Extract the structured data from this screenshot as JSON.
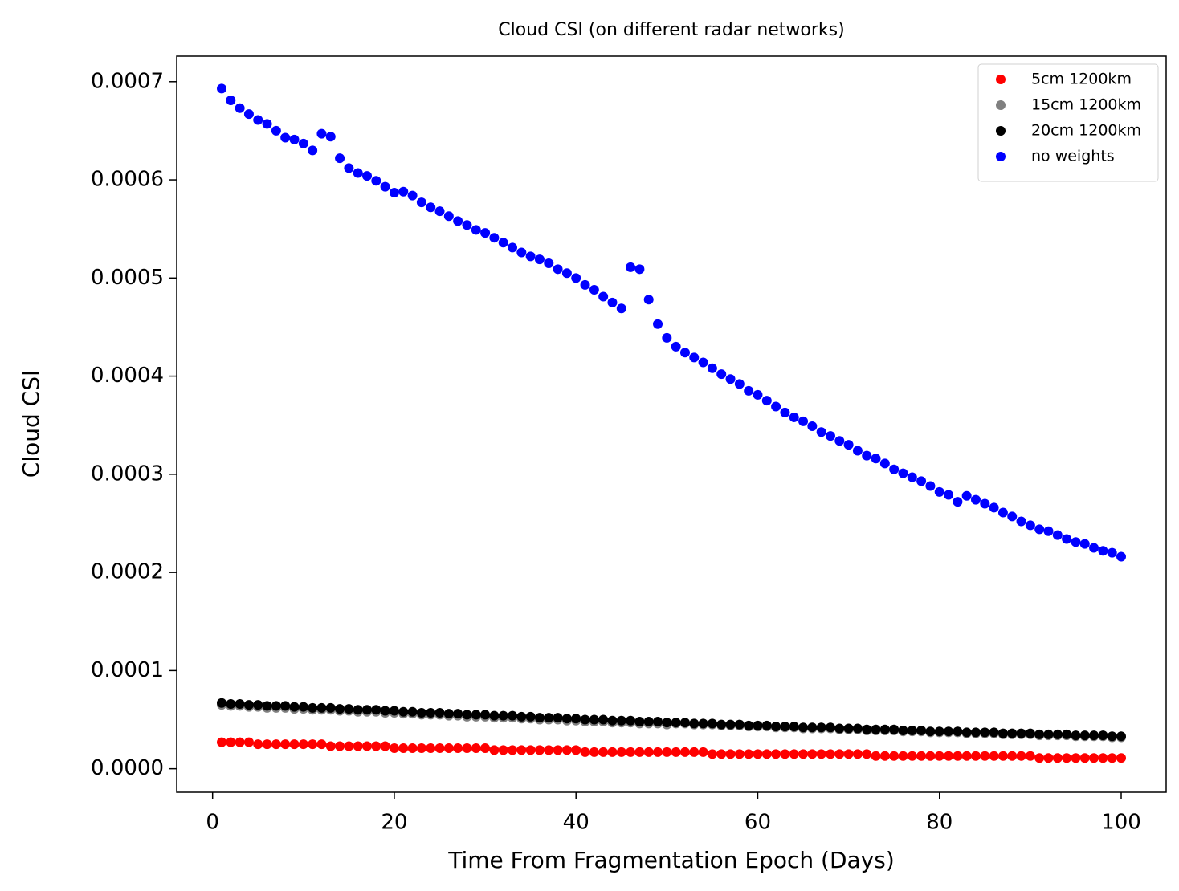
{
  "chart_data": {
    "type": "scatter",
    "title": "Cloud CSI (on different radar networks)",
    "x_label": "Time From Fragmentation Epoch (Days)",
    "y_label": "Cloud CSI",
    "x": [
      1,
      2,
      3,
      4,
      5,
      6,
      7,
      8,
      9,
      10,
      11,
      12,
      13,
      14,
      15,
      16,
      17,
      18,
      19,
      20,
      21,
      22,
      23,
      24,
      25,
      26,
      27,
      28,
      29,
      30,
      31,
      32,
      33,
      34,
      35,
      36,
      37,
      38,
      39,
      40,
      41,
      42,
      43,
      44,
      45,
      46,
      47,
      48,
      49,
      50,
      51,
      52,
      53,
      54,
      55,
      56,
      57,
      58,
      59,
      60,
      61,
      62,
      63,
      64,
      65,
      66,
      67,
      68,
      69,
      70,
      71,
      72,
      73,
      74,
      75,
      76,
      77,
      78,
      79,
      80,
      81,
      82,
      83,
      84,
      85,
      86,
      87,
      88,
      89,
      90,
      91,
      92,
      93,
      94,
      95,
      96,
      97,
      98,
      99,
      100
    ],
    "xlim": [
      -3.95,
      104.95
    ],
    "xticks": [
      0,
      20,
      40,
      60,
      80,
      100
    ],
    "ylim": [
      -2.4e-05,
      0.000726
    ],
    "yticks": [
      {
        "value": 0,
        "label": "0.0000"
      },
      0.0001,
      0.0002,
      0.0003,
      0.0004,
      0.0005,
      0.0006,
      0.0007
    ],
    "legend": "upper right",
    "series": [
      {
        "name": "5cm 1200km",
        "color": "#ff0000",
        "values": [
          2.7e-05,
          2.7e-05,
          2.7e-05,
          2.7e-05,
          2.5e-05,
          2.5e-05,
          2.5e-05,
          2.5e-05,
          2.5e-05,
          2.5e-05,
          2.5e-05,
          2.5e-05,
          2.3e-05,
          2.3e-05,
          2.3e-05,
          2.3e-05,
          2.3e-05,
          2.3e-05,
          2.3e-05,
          2.1e-05,
          2.1e-05,
          2.1e-05,
          2.1e-05,
          2.1e-05,
          2.1e-05,
          2.1e-05,
          2.1e-05,
          2.1e-05,
          2.1e-05,
          2.1e-05,
          1.9e-05,
          1.9e-05,
          1.9e-05,
          1.9e-05,
          1.9e-05,
          1.9e-05,
          1.9e-05,
          1.9e-05,
          1.9e-05,
          1.9e-05,
          1.7e-05,
          1.7e-05,
          1.7e-05,
          1.7e-05,
          1.7e-05,
          1.7e-05,
          1.7e-05,
          1.7e-05,
          1.7e-05,
          1.7e-05,
          1.7e-05,
          1.7e-05,
          1.7e-05,
          1.7e-05,
          1.5e-05,
          1.5e-05,
          1.5e-05,
          1.5e-05,
          1.5e-05,
          1.5e-05,
          1.5e-05,
          1.5e-05,
          1.5e-05,
          1.5e-05,
          1.5e-05,
          1.5e-05,
          1.5e-05,
          1.5e-05,
          1.5e-05,
          1.5e-05,
          1.5e-05,
          1.5e-05,
          1.3e-05,
          1.3e-05,
          1.3e-05,
          1.3e-05,
          1.3e-05,
          1.3e-05,
          1.3e-05,
          1.3e-05,
          1.3e-05,
          1.3e-05,
          1.3e-05,
          1.3e-05,
          1.3e-05,
          1.3e-05,
          1.3e-05,
          1.3e-05,
          1.3e-05,
          1.3e-05,
          1.1e-05,
          1.1e-05,
          1.1e-05,
          1.1e-05,
          1.1e-05,
          1.1e-05,
          1.1e-05,
          1.1e-05,
          1.1e-05,
          1.1e-05
        ]
      },
      {
        "name": "15cm 1200km",
        "color": "#808080",
        "values": [
          6.5e-05,
          6.4e-05,
          6.4e-05,
          6.3e-05,
          6.3e-05,
          6.2e-05,
          6.2e-05,
          6.2e-05,
          6.1e-05,
          6.1e-05,
          6e-05,
          6e-05,
          6e-05,
          5.9e-05,
          5.9e-05,
          5.8e-05,
          5.8e-05,
          5.8e-05,
          5.7e-05,
          5.7e-05,
          5.6e-05,
          5.6e-05,
          5.5e-05,
          5.5e-05,
          5.5e-05,
          5.4e-05,
          5.4e-05,
          5.3e-05,
          5.3e-05,
          5.3e-05,
          5.2e-05,
          5.2e-05,
          5.2e-05,
          5.1e-05,
          5.1e-05,
          5e-05,
          5e-05,
          5e-05,
          4.9e-05,
          4.9e-05,
          4.8e-05,
          4.8e-05,
          4.8e-05,
          4.7e-05,
          4.7e-05,
          4.7e-05,
          4.6e-05,
          4.6e-05,
          4.6e-05,
          4.5e-05,
          4.6e-05,
          4.6e-05,
          4.5e-05,
          4.5e-05,
          4.5e-05,
          4.4e-05,
          4.4e-05,
          4.4e-05,
          4.3e-05,
          4.3e-05,
          4.3e-05,
          4.2e-05,
          4.2e-05,
          4.2e-05,
          4.1e-05,
          4.1e-05,
          4.1e-05,
          4.1e-05,
          4e-05,
          4e-05,
          4e-05,
          3.9e-05,
          3.9e-05,
          3.9e-05,
          3.9e-05,
          3.8e-05,
          3.8e-05,
          3.8e-05,
          3.7e-05,
          3.7e-05,
          3.7e-05,
          3.7e-05,
          3.6e-05,
          3.6e-05,
          3.6e-05,
          3.6e-05,
          3.5e-05,
          3.5e-05,
          3.5e-05,
          3.5e-05,
          3.4e-05,
          3.4e-05,
          3.4e-05,
          3.4e-05,
          3.3e-05,
          3.3e-05,
          3.3e-05,
          3.3e-05,
          3.2e-05,
          3.2e-05
        ]
      },
      {
        "name": "20cm 1200km",
        "color": "#000000",
        "values": [
          6.7e-05,
          6.6e-05,
          6.6e-05,
          6.5e-05,
          6.5e-05,
          6.4e-05,
          6.4e-05,
          6.4e-05,
          6.3e-05,
          6.3e-05,
          6.2e-05,
          6.2e-05,
          6.2e-05,
          6.1e-05,
          6.1e-05,
          6e-05,
          6e-05,
          6e-05,
          5.9e-05,
          5.9e-05,
          5.8e-05,
          5.8e-05,
          5.7e-05,
          5.7e-05,
          5.7e-05,
          5.6e-05,
          5.6e-05,
          5.5e-05,
          5.5e-05,
          5.5e-05,
          5.4e-05,
          5.4e-05,
          5.4e-05,
          5.3e-05,
          5.3e-05,
          5.2e-05,
          5.2e-05,
          5.2e-05,
          5.1e-05,
          5.1e-05,
          5e-05,
          5e-05,
          5e-05,
          4.9e-05,
          4.9e-05,
          4.9e-05,
          4.8e-05,
          4.8e-05,
          4.8e-05,
          4.7e-05,
          4.7e-05,
          4.7e-05,
          4.6e-05,
          4.6e-05,
          4.6e-05,
          4.5e-05,
          4.5e-05,
          4.5e-05,
          4.4e-05,
          4.4e-05,
          4.4e-05,
          4.3e-05,
          4.3e-05,
          4.3e-05,
          4.2e-05,
          4.2e-05,
          4.2e-05,
          4.2e-05,
          4.1e-05,
          4.1e-05,
          4.1e-05,
          4e-05,
          4e-05,
          4e-05,
          4e-05,
          3.9e-05,
          3.9e-05,
          3.9e-05,
          3.8e-05,
          3.8e-05,
          3.8e-05,
          3.8e-05,
          3.7e-05,
          3.7e-05,
          3.7e-05,
          3.7e-05,
          3.6e-05,
          3.6e-05,
          3.6e-05,
          3.6e-05,
          3.5e-05,
          3.5e-05,
          3.5e-05,
          3.5e-05,
          3.4e-05,
          3.4e-05,
          3.4e-05,
          3.4e-05,
          3.3e-05,
          3.3e-05
        ]
      },
      {
        "name": "no weights",
        "color": "#0000ff",
        "values": [
          0.000693,
          0.000681,
          0.000673,
          0.000667,
          0.000661,
          0.000657,
          0.00065,
          0.000643,
          0.000641,
          0.000637,
          0.00063,
          0.000647,
          0.000644,
          0.000622,
          0.000612,
          0.000607,
          0.000604,
          0.000599,
          0.000593,
          0.000587,
          0.000588,
          0.000584,
          0.000577,
          0.000572,
          0.000568,
          0.000563,
          0.000558,
          0.000554,
          0.000549,
          0.000546,
          0.000541,
          0.000536,
          0.000531,
          0.000526,
          0.000522,
          0.000519,
          0.000515,
          0.000509,
          0.000505,
          0.0005,
          0.000493,
          0.000488,
          0.000481,
          0.000475,
          0.000469,
          0.000511,
          0.000509,
          0.000478,
          0.000453,
          0.000439,
          0.00043,
          0.000424,
          0.000419,
          0.000414,
          0.000408,
          0.000402,
          0.000397,
          0.000392,
          0.000385,
          0.000381,
          0.000375,
          0.000369,
          0.000363,
          0.000358,
          0.000354,
          0.000349,
          0.000343,
          0.000339,
          0.000334,
          0.00033,
          0.000324,
          0.000319,
          0.000316,
          0.000311,
          0.000305,
          0.000301,
          0.000297,
          0.000293,
          0.000288,
          0.000282,
          0.000279,
          0.000272,
          0.000278,
          0.000274,
          0.00027,
          0.000266,
          0.000261,
          0.000257,
          0.000252,
          0.000248,
          0.000244,
          0.000242,
          0.000238,
          0.000234,
          0.000231,
          0.000229,
          0.000225,
          0.000222,
          0.00022,
          0.000216
        ]
      }
    ]
  }
}
